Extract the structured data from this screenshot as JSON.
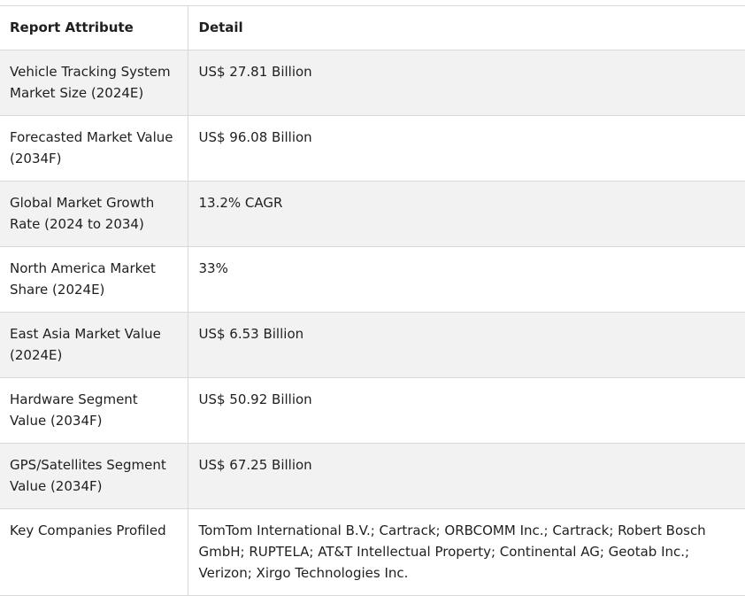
{
  "table": {
    "headers": [
      "Report Attribute",
      "Detail"
    ],
    "rows": [
      {
        "attribute": "Vehicle Tracking System Market Size (2024E)",
        "detail": "US$ 27.81 Billion"
      },
      {
        "attribute": "Forecasted Market Value (2034F)",
        "detail": "US$ 96.08 Billion"
      },
      {
        "attribute": "Global Market Growth Rate (2024 to 2034)",
        "detail": "13.2% CAGR"
      },
      {
        "attribute": "North America Market Share (2024E)",
        "detail": "33%"
      },
      {
        "attribute": "East Asia Market Value (2024E)",
        "detail": "US$ 6.53 Billion"
      },
      {
        "attribute": "Hardware Segment Value (2034F)",
        "detail": "US$ 50.92 Billion"
      },
      {
        "attribute": "GPS/Satellites Segment Value (2034F)",
        "detail": "US$ 67.25 Billion"
      },
      {
        "attribute": "Key Companies Profiled",
        "detail": "TomTom International B.V.; Cartrack; ORBCOMM Inc.; Cartrack; Robert Bosch GmbH; RUPTELA; AT&T Intellectual Property; Continental AG; Geotab Inc.; Verizon; Xirgo Technologies Inc."
      }
    ]
  }
}
